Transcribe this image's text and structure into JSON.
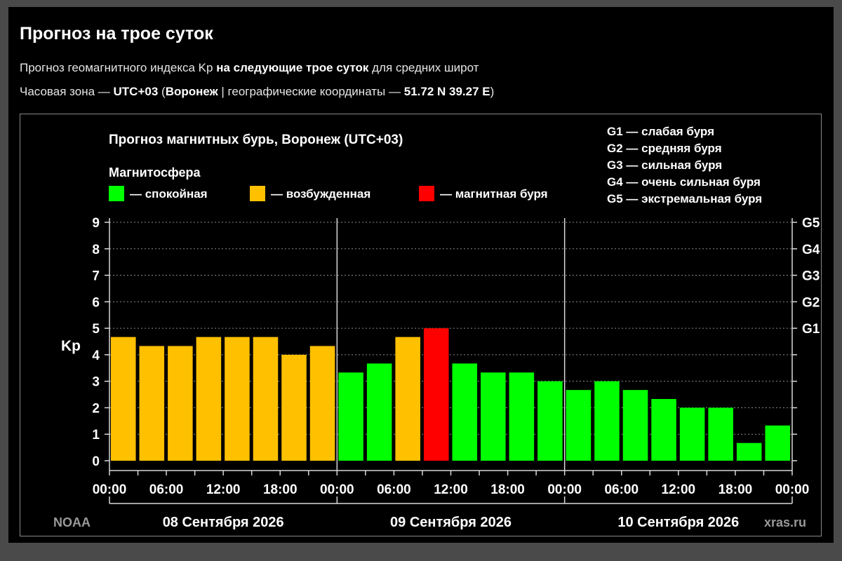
{
  "header": {
    "title": "Прогноз на трое суток",
    "subtitle": {
      "pre": "Прогноз геомагнитного индекса Kp ",
      "bold": "на следующие трое суток",
      "post": " для средних широт"
    },
    "timezone": {
      "pre": "Часовая зона — ",
      "tz": "UTC+03",
      "mid1": " (",
      "city": "Воронеж",
      "mid2": " | географические координаты — ",
      "coords": "51.72 N 39.27 E",
      "post": ")"
    }
  },
  "colors": {
    "quiet": "#00ff00",
    "disturbed": "#ffc000",
    "storm": "#ff0000",
    "background": "#000000"
  },
  "chart_data": {
    "type": "bar",
    "title": "Прогноз магнитных бурь, Воронеж (UTC+03)",
    "legend_title": "Магнитосфера",
    "legend": [
      {
        "key": "quiet",
        "label": "— спокойная"
      },
      {
        "key": "disturbed",
        "label": "— возбужденная"
      },
      {
        "key": "storm",
        "label": "— магнитная буря"
      }
    ],
    "g_legend": [
      "G1 — слабая буря",
      "G2 — средняя буря",
      "G3 — сильная буря",
      "G4 — очень сильная буря",
      "G5 — экстремальная буря"
    ],
    "ylabel": "Kp",
    "ylim": [
      0,
      9
    ],
    "yticks": [
      "0",
      "1",
      "2",
      "3",
      "4",
      "5",
      "6",
      "7",
      "8",
      "9"
    ],
    "right_ticks": [
      {
        "value": 5,
        "label": "G1"
      },
      {
        "value": 6,
        "label": "G2"
      },
      {
        "value": 7,
        "label": "G3"
      },
      {
        "value": 8,
        "label": "G4"
      },
      {
        "value": 9,
        "label": "G5"
      }
    ],
    "xtick_labels": [
      "00:00",
      "06:00",
      "12:00",
      "18:00",
      "00:00",
      "06:00",
      "12:00",
      "18:00",
      "00:00",
      "06:00",
      "12:00",
      "18:00",
      "00:00"
    ],
    "days": [
      "08 Сентября 2026",
      "09 Сентября 2026",
      "10 Сентября 2026"
    ],
    "values": [
      4.67,
      4.33,
      4.33,
      4.67,
      4.67,
      4.67,
      4.0,
      4.33,
      3.33,
      3.67,
      4.67,
      5.0,
      3.67,
      3.33,
      3.33,
      3.0,
      2.67,
      3.0,
      2.67,
      2.33,
      2.0,
      2.0,
      0.67,
      1.33
    ],
    "levels": [
      "disturbed",
      "disturbed",
      "disturbed",
      "disturbed",
      "disturbed",
      "disturbed",
      "disturbed",
      "disturbed",
      "quiet",
      "quiet",
      "disturbed",
      "storm",
      "quiet",
      "quiet",
      "quiet",
      "quiet",
      "quiet",
      "quiet",
      "quiet",
      "quiet",
      "quiet",
      "quiet",
      "quiet",
      "quiet"
    ],
    "grid": true,
    "source_left": "NOAA",
    "source_right": "xras.ru"
  }
}
